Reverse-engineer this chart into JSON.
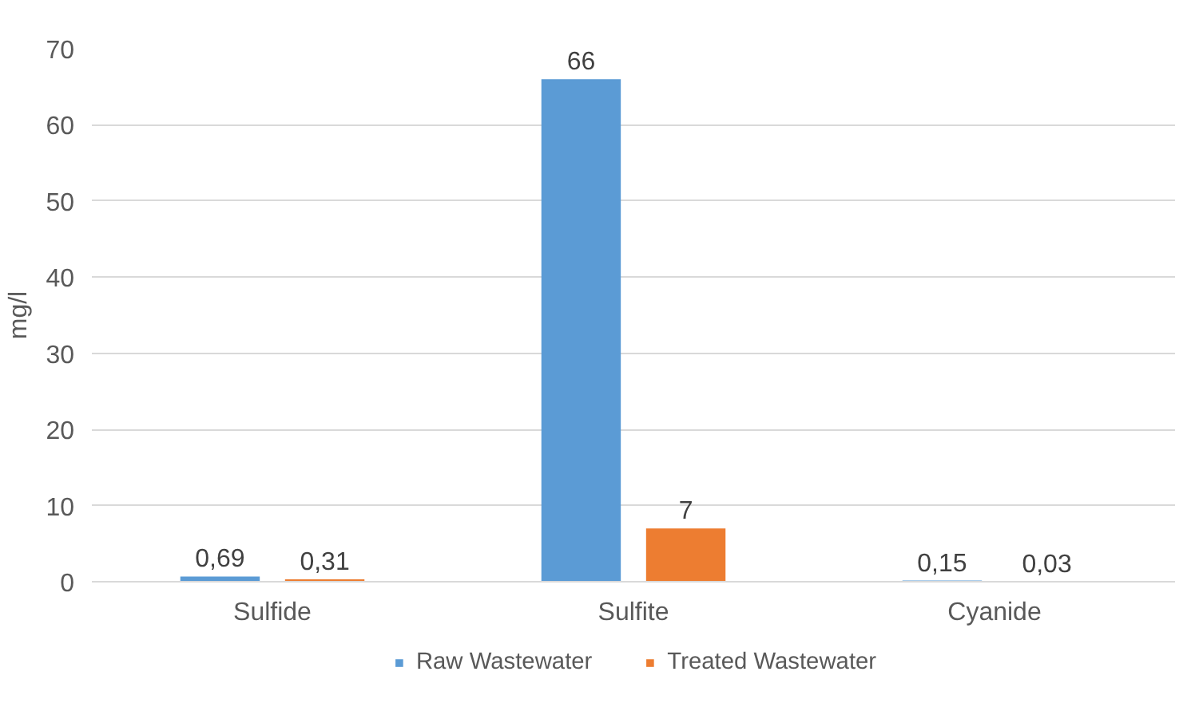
{
  "chart_data": {
    "type": "bar",
    "ylabel": "mg/l",
    "categories": [
      "Sulfide",
      "Sulfite",
      "Cyanide"
    ],
    "series": [
      {
        "name": "Raw Wastewater",
        "color": "#5b9bd5",
        "values": [
          0.69,
          66,
          0.15
        ],
        "value_labels": [
          "0,69",
          "66",
          "0,15"
        ]
      },
      {
        "name": "Treated Wastewater",
        "color": "#ed7d31",
        "values": [
          0.31,
          7,
          0.03
        ],
        "value_labels": [
          "0,31",
          "7",
          "0,03"
        ]
      }
    ],
    "ylim": [
      0,
      70
    ],
    "yticks": [
      0,
      10,
      20,
      30,
      40,
      50,
      60,
      70
    ],
    "grid": "y",
    "legend": "bottom"
  }
}
